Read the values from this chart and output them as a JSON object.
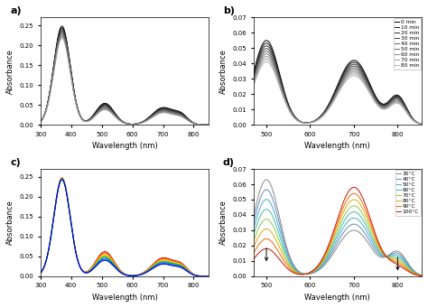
{
  "panel_a": {
    "label": "a)",
    "xlim": [
      300,
      850
    ],
    "ylim": [
      0.0,
      0.27
    ],
    "yticks": [
      0.0,
      0.05,
      0.1,
      0.15,
      0.2,
      0.25
    ],
    "xlabel": "Wavelength (nm)",
    "ylabel": "Absorbance",
    "n_curves": 9
  },
  "panel_b": {
    "label": "b)",
    "xlim": [
      470,
      855
    ],
    "ylim": [
      0.0,
      0.07
    ],
    "yticks": [
      0.0,
      0.01,
      0.02,
      0.03,
      0.04,
      0.05,
      0.06,
      0.07
    ],
    "xlabel": "Wavelength (nm)",
    "ylabel": "Absorbance",
    "legend": [
      "0 min",
      "10 min",
      "20 min",
      "30 min",
      "40 min",
      "50 min",
      "60 min",
      "70 min",
      "80 min"
    ],
    "n_curves": 9
  },
  "panel_c": {
    "label": "c)",
    "xlim": [
      300,
      850
    ],
    "ylim": [
      0.0,
      0.27
    ],
    "yticks": [
      0.0,
      0.05,
      0.1,
      0.15,
      0.2,
      0.25
    ],
    "xlabel": "Wavelength (nm)",
    "ylabel": "Absorbance",
    "n_curves": 9,
    "colors": [
      "#cc0000",
      "#ff4400",
      "#ff8800",
      "#ffcc00",
      "#88bb00",
      "#00aa44",
      "#0088cc",
      "#0044ff",
      "#0000cc"
    ]
  },
  "panel_d": {
    "label": "d)",
    "xlim": [
      470,
      855
    ],
    "ylim": [
      0.0,
      0.07
    ],
    "yticks": [
      0.0,
      0.01,
      0.02,
      0.03,
      0.04,
      0.05,
      0.06,
      0.07
    ],
    "xlabel": "Wavelength (nm)",
    "ylabel": "Absorbance",
    "legend": [
      "30°C",
      "40°C",
      "50°C",
      "60°C",
      "70°C",
      "80°C",
      "90°C",
      "100°C"
    ],
    "n_curves": 8,
    "colors": [
      "#888888",
      "#6688bb",
      "#44aacc",
      "#44bbaa",
      "#88cc44",
      "#ddaa00",
      "#ee6600",
      "#cc1100"
    ]
  }
}
